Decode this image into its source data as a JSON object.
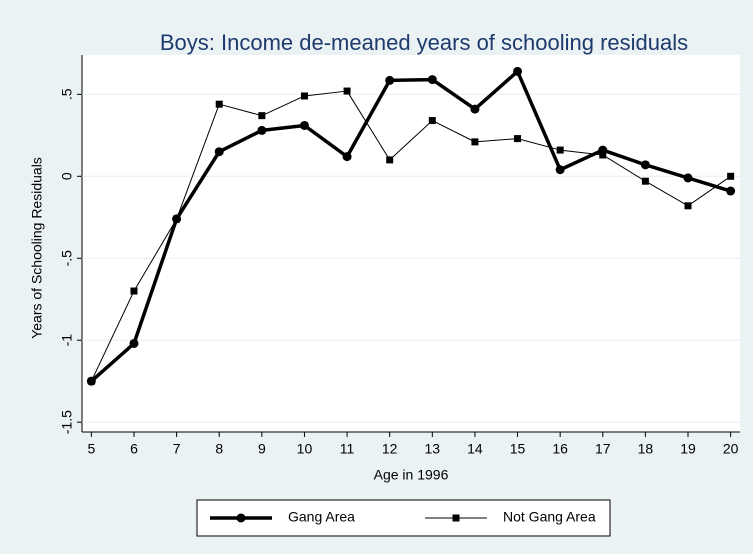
{
  "chart_data": {
    "type": "line",
    "title": "Boys: Income de-meaned years of schooling residuals",
    "x_label": "Age in 1996",
    "y_label": "Years of Schooling Residuals",
    "x": [
      5,
      6,
      7,
      8,
      9,
      10,
      11,
      12,
      13,
      14,
      15,
      16,
      17,
      18,
      19,
      20
    ],
    "series": [
      {
        "name": "Gang Area",
        "color": "#000000",
        "marker": "circle",
        "width": 3.5,
        "values": [
          -1.25,
          -1.02,
          -0.26,
          0.15,
          0.28,
          0.31,
          0.12,
          0.585,
          0.59,
          0.41,
          0.64,
          0.04,
          0.16,
          0.07,
          -0.01,
          -0.09
        ]
      },
      {
        "name": "Not Gang Area",
        "color": "#000000",
        "marker": "square",
        "width": 1,
        "values": [
          -1.25,
          -0.7,
          -0.26,
          0.44,
          0.37,
          0.49,
          0.52,
          0.1,
          0.34,
          0.21,
          0.23,
          0.16,
          0.13,
          -0.03,
          -0.18,
          0.0
        ]
      }
    ],
    "xlim": [
      4.78,
      20.22
    ],
    "ylim": [
      -1.56,
      0.74
    ],
    "xticks": [
      5,
      6,
      7,
      8,
      9,
      10,
      11,
      12,
      13,
      14,
      15,
      16,
      17,
      18,
      19,
      20
    ],
    "yticks": [
      -1.5,
      -1,
      {
        "value": -0.5,
        "label": "-.5"
      },
      0,
      {
        "value": 0.5,
        "label": ".5"
      }
    ],
    "grid": true,
    "legend": "bottom"
  }
}
